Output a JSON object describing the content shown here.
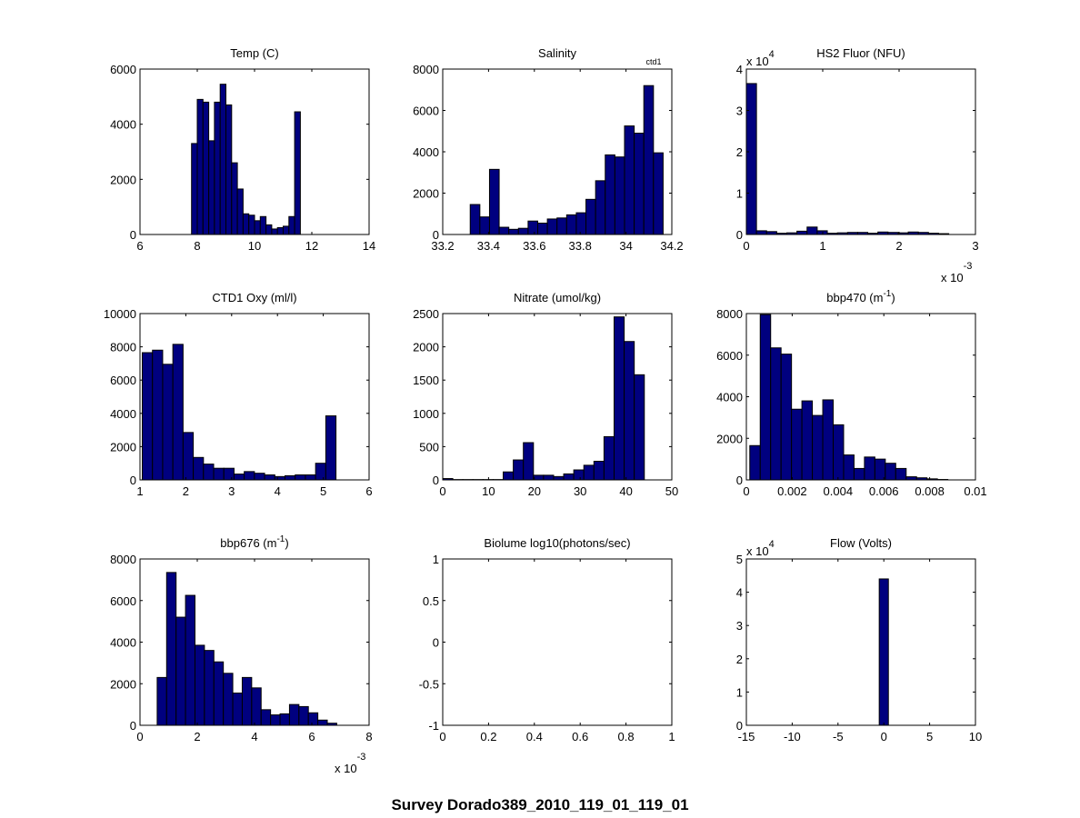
{
  "figure_title": "Survey Dorado389_2010_119_01_119_01",
  "chart_data": [
    {
      "type": "bar",
      "title": "Temp (C)",
      "xlim": [
        6,
        14
      ],
      "ylim": [
        0,
        6000
      ],
      "xticks": [
        "6",
        "8",
        "10",
        "12",
        "14"
      ],
      "yticks": [
        "0",
        "2000",
        "4000",
        "6000"
      ],
      "bin_start": 7.8,
      "bin_width": 0.2,
      "values": [
        3300,
        4900,
        4800,
        3400,
        4800,
        5450,
        4700,
        2600,
        1650,
        750,
        700,
        500,
        650,
        350,
        200,
        250,
        300,
        650,
        4450
      ]
    },
    {
      "type": "bar",
      "title": "Salinity",
      "annotation": "ctd1",
      "xlim": [
        33.2,
        34.2
      ],
      "ylim": [
        0,
        8000
      ],
      "xticks": [
        "33.2",
        "33.4",
        "33.6",
        "33.8",
        "34",
        "34.2"
      ],
      "yticks": [
        "0",
        "2000",
        "4000",
        "6000",
        "8000"
      ],
      "bin_start": 33.32,
      "bin_width": 0.0421,
      "values": [
        1450,
        850,
        3150,
        350,
        250,
        300,
        650,
        550,
        750,
        800,
        950,
        1050,
        1700,
        2600,
        3850,
        3750,
        5250,
        4900,
        7200,
        3950
      ]
    },
    {
      "type": "bar",
      "title": "HS2 Fluor (NFU)",
      "xlim": [
        0,
        3
      ],
      "ylim": [
        0,
        4
      ],
      "xticks": [
        "0",
        "1",
        "2",
        "3"
      ],
      "yticks": [
        "0",
        "1",
        "2",
        "3",
        "4"
      ],
      "y_multiplier": "x 10",
      "y_exponent": "4",
      "x_multiplier": "x 10",
      "x_exponent": "-3",
      "bin_start": 0,
      "bin_width": 0.1325,
      "values": [
        3.65,
        0.09,
        0.07,
        0.03,
        0.04,
        0.08,
        0.18,
        0.09,
        0.03,
        0.04,
        0.05,
        0.05,
        0.03,
        0.06,
        0.05,
        0.04,
        0.06,
        0.05,
        0.03,
        0.02
      ]
    },
    {
      "type": "bar",
      "title": "CTD1 Oxy (ml/l)",
      "xlim": [
        1,
        6
      ],
      "ylim": [
        0,
        10000
      ],
      "xticks": [
        "1",
        "2",
        "3",
        "4",
        "5",
        "6"
      ],
      "yticks": [
        "0",
        "2000",
        "4000",
        "6000",
        "8000",
        "10000"
      ],
      "bin_start": 1.05,
      "bin_width": 0.2225,
      "values": [
        7650,
        7800,
        6950,
        8150,
        2850,
        1350,
        950,
        700,
        700,
        350,
        500,
        400,
        300,
        200,
        250,
        300,
        300,
        1000,
        3850
      ]
    },
    {
      "type": "bar",
      "title": "Nitrate (umol/kg)",
      "xlim": [
        0,
        50
      ],
      "ylim": [
        0,
        2500
      ],
      "xticks": [
        "0",
        "10",
        "20",
        "30",
        "40",
        "50"
      ],
      "yticks": [
        "0",
        "500",
        "1000",
        "1500",
        "2000",
        "2500"
      ],
      "bin_start": 0,
      "bin_width": 2.2,
      "values": [
        20,
        5,
        5,
        5,
        5,
        5,
        120,
        300,
        560,
        70,
        70,
        50,
        90,
        150,
        220,
        280,
        650,
        2450,
        2080,
        1580
      ]
    },
    {
      "type": "bar",
      "title": "bbp470 (m",
      "title_sup": "-1",
      "title_end": ")",
      "xlim": [
        0,
        0.01
      ],
      "ylim": [
        0,
        8000
      ],
      "xticks": [
        "0",
        "0.002",
        "0.004",
        "0.006",
        "0.008",
        "0.01"
      ],
      "yticks": [
        "0",
        "2000",
        "4000",
        "6000",
        "8000"
      ],
      "bin_start": 0.00015,
      "bin_width": 0.000455,
      "values": [
        1650,
        7950,
        6350,
        6050,
        3400,
        3800,
        3100,
        3850,
        2650,
        1200,
        550,
        1100,
        1000,
        800,
        550,
        150,
        100,
        50,
        20
      ]
    },
    {
      "type": "bar",
      "title": "bbp676 (m",
      "title_sup": "-1",
      "title_end": ")",
      "xlim": [
        0,
        8
      ],
      "ylim": [
        0,
        8000
      ],
      "xticks": [
        "0",
        "2",
        "4",
        "6",
        "8"
      ],
      "yticks": [
        "0",
        "2000",
        "4000",
        "6000",
        "8000"
      ],
      "x_multiplier": "x 10",
      "x_exponent": "-3",
      "bin_start": 0.6,
      "bin_width": 0.33,
      "values": [
        2300,
        7350,
        5200,
        6250,
        3850,
        3600,
        3050,
        2500,
        1550,
        2300,
        1800,
        750,
        500,
        550,
        1000,
        900,
        600,
        250,
        100
      ]
    },
    {
      "type": "bar",
      "title": "Biolume log10(photons/sec)",
      "xlim": [
        0,
        1
      ],
      "ylim": [
        -1,
        1
      ],
      "xticks": [
        "0",
        "0.2",
        "0.4",
        "0.6",
        "0.8",
        "1"
      ],
      "yticks": [
        "-1",
        "-0.5",
        "0",
        "0.5",
        "1"
      ],
      "bin_start": 0,
      "bin_width": 0.1,
      "values": []
    },
    {
      "type": "bar",
      "title": "Flow (Volts)",
      "xlim": [
        -15,
        10
      ],
      "ylim": [
        0,
        5
      ],
      "xticks": [
        "-15",
        "-10",
        "-5",
        "0",
        "5",
        "10"
      ],
      "yticks": [
        "0",
        "1",
        "2",
        "3",
        "4",
        "5"
      ],
      "y_multiplier": "x 10",
      "y_exponent": "4",
      "bin_start": -0.5,
      "bin_width": 1.0,
      "values": [
        4.4
      ]
    }
  ]
}
